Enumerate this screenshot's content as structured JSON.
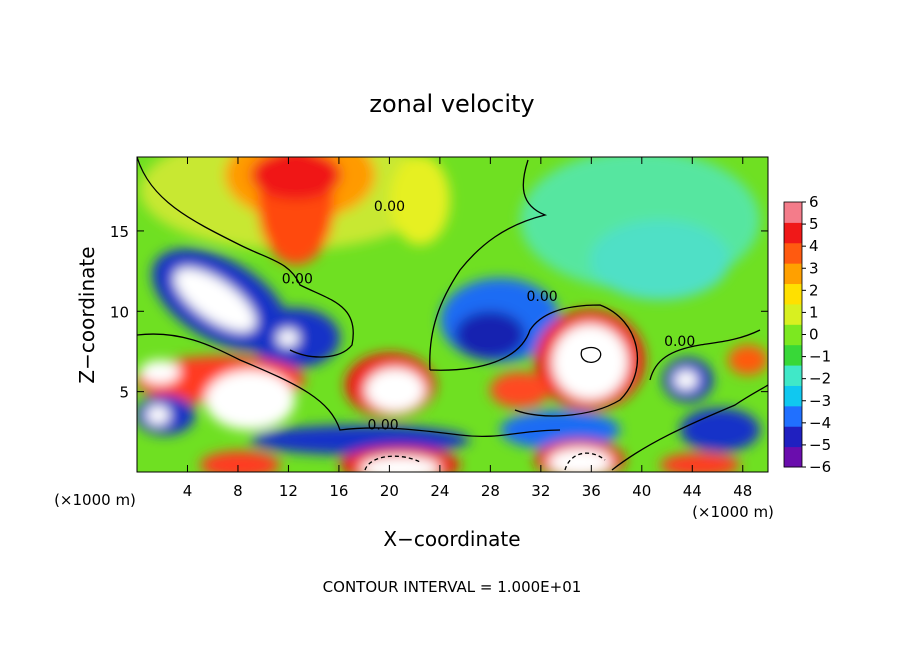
{
  "chart_data": {
    "type": "heatmap",
    "title": "zonal velocity",
    "xlabel": "X−coordinate",
    "ylabel": "Z−coordinate",
    "x_unit": "(×1000 m)",
    "x_ticks": [
      "4",
      "8",
      "12",
      "16",
      "20",
      "24",
      "28",
      "32",
      "36",
      "40",
      "44",
      "48"
    ],
    "y_ticks": [
      "5",
      "10",
      "15"
    ],
    "xlim": [
      0,
      50
    ],
    "ylim": [
      0,
      19.6
    ],
    "colorbar": {
      "ticks": [
        "6",
        "5",
        "4",
        "3",
        "2",
        "1",
        "0",
        "−1",
        "−2",
        "−3",
        "−4",
        "−5",
        "−6"
      ],
      "range": [
        -6,
        6
      ],
      "colors": [
        "#6a0dad",
        "#2020c0",
        "#2070ff",
        "#10c8f0",
        "#40e8c8",
        "#38d838",
        "#7ce820",
        "#d8f020",
        "#ffe000",
        "#ffa000",
        "#ff5a10",
        "#f01818",
        "#f47c8a"
      ]
    },
    "contour_labels": [
      "0.00",
      "0.00",
      "0.00",
      "0.00",
      "0.00"
    ],
    "contour_level": 0.0,
    "footnote": "CONTOUR INTERVAL = 1.000E+01"
  }
}
